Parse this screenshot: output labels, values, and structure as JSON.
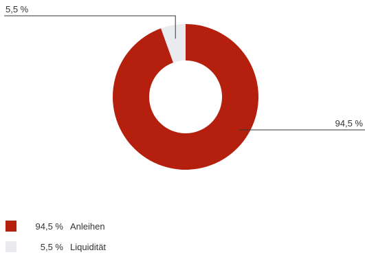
{
  "chart_data": {
    "type": "pie",
    "donut": true,
    "title": "",
    "slices": [
      {
        "label": "Anleihen",
        "value": 94.5,
        "value_label": "94,5 %",
        "color": "#B5200E"
      },
      {
        "label": "Liquidität",
        "value": 5.5,
        "value_label": "5,5 %",
        "color": "#EAEBEE"
      }
    ],
    "legend_placement": "bottom-left"
  },
  "legend": [
    {
      "value": "94,5 %",
      "name": "Anleihen",
      "color": "#B5200E"
    },
    {
      "value": "5,5 %",
      "name": "Liquidität",
      "color": "#EAEBEE"
    }
  ]
}
